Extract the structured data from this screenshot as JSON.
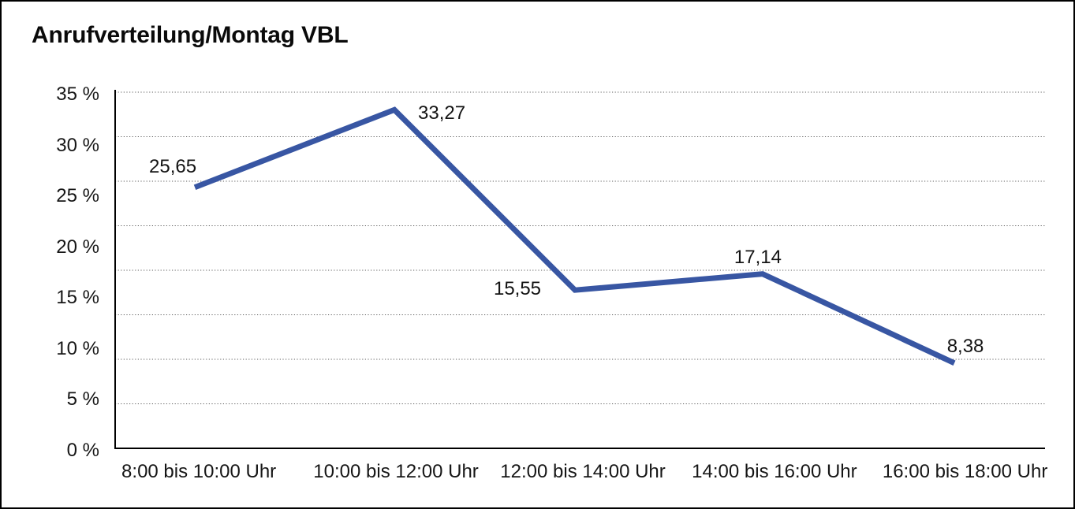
{
  "chart_data": {
    "type": "line",
    "title": "Anrufverteilung/Montag VBL",
    "categories": [
      "8:00 bis 10:00 Uhr",
      "10:00 bis 12:00 Uhr",
      "12:00 bis 14:00 Uhr",
      "14:00 bis 16:00 Uhr",
      "16:00 bis 18:00 Uhr"
    ],
    "values": [
      25.65,
      33.27,
      15.55,
      17.14,
      8.38
    ],
    "point_labels": [
      "25,65",
      "33,27",
      "15,55",
      "17,14",
      "8,38"
    ],
    "y_ticks": [
      {
        "value": 35,
        "label": "35 %"
      },
      {
        "value": 30,
        "label": "30 %"
      },
      {
        "value": 25,
        "label": "25 %"
      },
      {
        "value": 20,
        "label": "20 %"
      },
      {
        "value": 15,
        "label": "15 %"
      },
      {
        "value": 10,
        "label": "10 %"
      },
      {
        "value": 5,
        "label": "5 %"
      },
      {
        "value": 0,
        "label": "0 %"
      }
    ],
    "ylim": [
      0,
      35
    ],
    "xlabel": "",
    "ylabel": "",
    "legend": "none",
    "grid": "horizontal-dotted",
    "gridline_intervals": 8,
    "line_color": "#3856A3",
    "axis_color": "#000000",
    "gridline_color": "#5a5a5a",
    "unit": "percent"
  }
}
